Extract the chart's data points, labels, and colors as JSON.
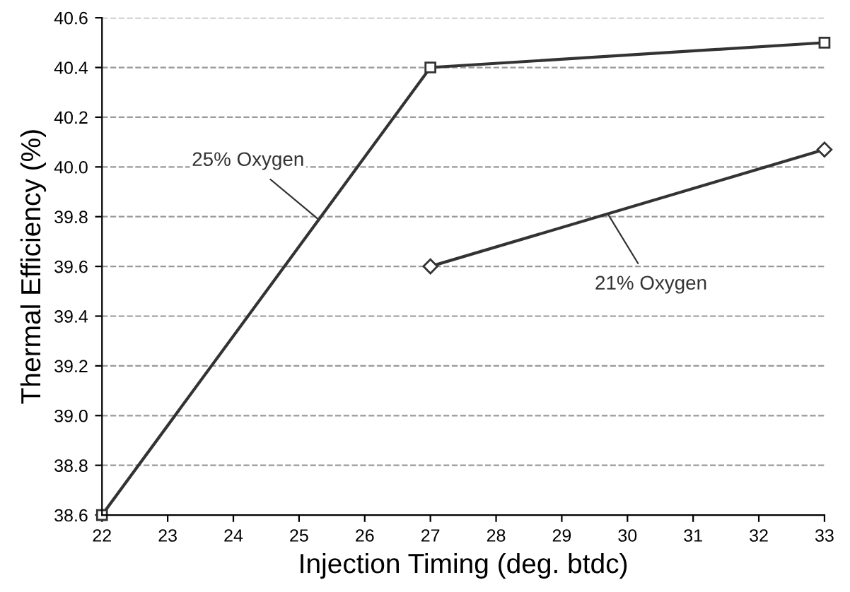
{
  "chart_data": {
    "type": "line",
    "xlabel": "Injection Timing (deg. btdc)",
    "ylabel": "Thermal Efficiency (%)",
    "xlim": [
      22,
      33
    ],
    "xticks": [
      22,
      23,
      24,
      25,
      26,
      27,
      28,
      29,
      30,
      31,
      32,
      33
    ],
    "ylim": [
      38.6,
      40.6
    ],
    "yticks": [
      38.6,
      38.8,
      {
        "value": 39,
        "label": "39.0"
      },
      39.2,
      39.4,
      39.6,
      39.8,
      {
        "value": 40,
        "label": "40.0"
      },
      40.2,
      40.4,
      40.6
    ],
    "grid": "y",
    "line_style": "solid",
    "legend": false,
    "series": [
      {
        "name": "25% Oxygen",
        "color": "#333333",
        "marker": "square",
        "x": [
          22,
          27,
          33
        ],
        "values": [
          38.6,
          40.4,
          40.5
        ]
      },
      {
        "name": "21% Oxygen",
        "color": "#333333",
        "marker": "diamond",
        "x": [
          27,
          33
        ],
        "values": [
          39.6,
          40.07
        ]
      }
    ]
  }
}
